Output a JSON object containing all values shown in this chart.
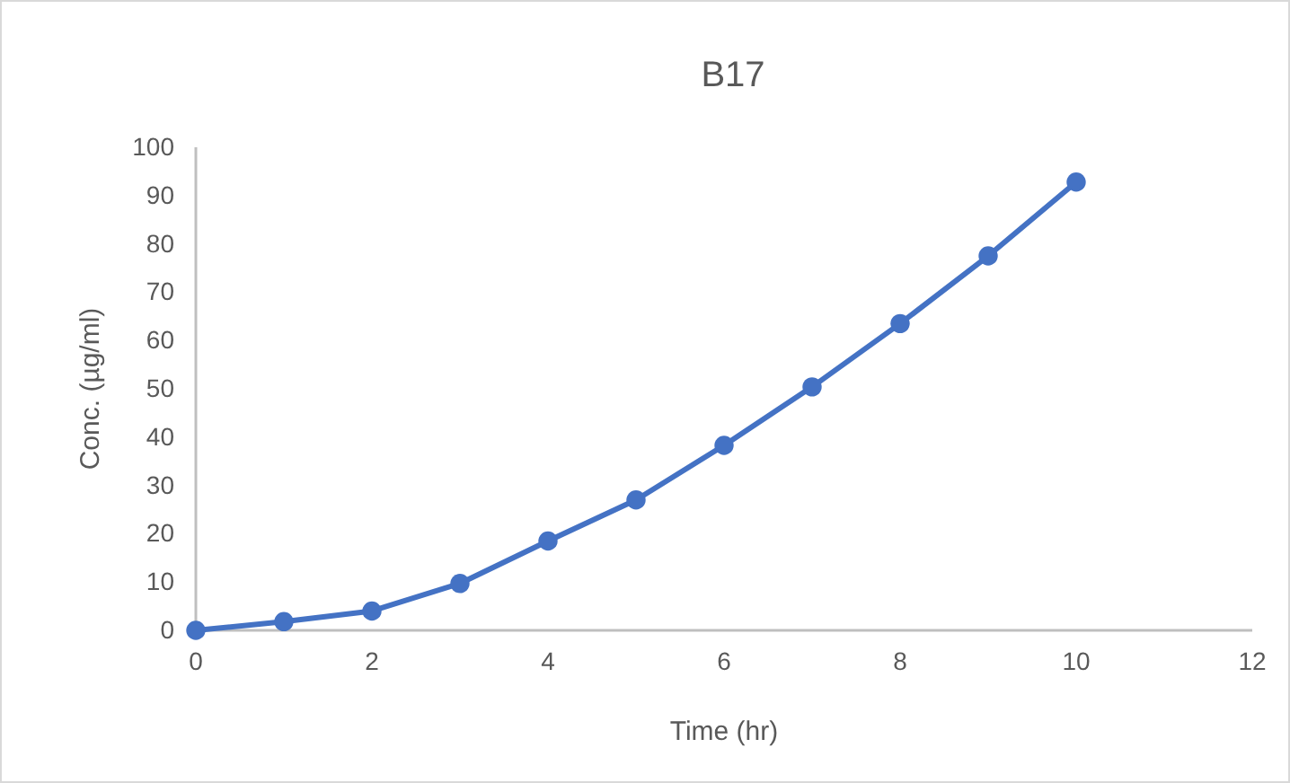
{
  "chart_data": {
    "type": "line",
    "title": "B17",
    "xlabel": "Time (hr)",
    "ylabel": "Conc. (µg/ml)",
    "x": [
      0,
      1,
      2,
      3,
      4,
      5,
      6,
      7,
      8,
      9,
      10
    ],
    "series": [
      {
        "color": "#4472c4",
        "values": [
          0,
          1.8,
          4,
          9.7,
          18.5,
          27,
          38.3,
          50.4,
          63.5,
          77.5,
          92.8
        ]
      }
    ],
    "xlim": [
      0,
      12
    ],
    "xticks": [
      0,
      2,
      4,
      6,
      8,
      10,
      12
    ],
    "ylim": [
      0,
      100
    ],
    "yticks": [
      0,
      10,
      20,
      30,
      40,
      50,
      60,
      70,
      80,
      90,
      100
    ],
    "marker": "circle",
    "line_style": "solid",
    "grid": false
  }
}
